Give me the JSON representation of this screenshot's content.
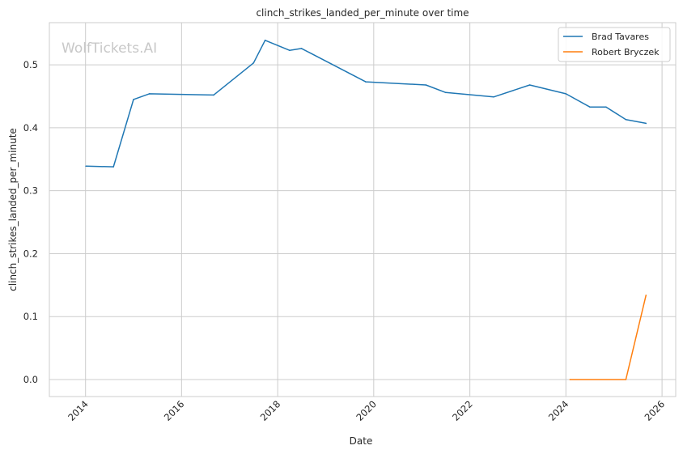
{
  "chart_data": {
    "type": "line",
    "title": "clinch_strikes_landed_per_minute over time",
    "xlabel": "Date",
    "ylabel": "clinch_strikes_landed_per_minute",
    "watermark": "WolfTickets.AI",
    "grid": true,
    "legend_position": "top-right",
    "xlim": [
      "2013-04-01",
      "2026-04-15"
    ],
    "ylim": [
      -0.027,
      0.567
    ],
    "x_ticks": [
      "2014",
      "2016",
      "2018",
      "2020",
      "2022",
      "2024",
      "2026"
    ],
    "y_ticks": [
      "0.0",
      "0.1",
      "0.2",
      "0.3",
      "0.4",
      "0.5"
    ],
    "series": [
      {
        "name": "Brad Tavares",
        "color": "#1f77b4",
        "points": [
          {
            "x": "2014-01-04",
            "y": 0.339
          },
          {
            "x": "2014-08-01",
            "y": 0.338
          },
          {
            "x": "2015-01-01",
            "y": 0.445
          },
          {
            "x": "2015-05-01",
            "y": 0.454
          },
          {
            "x": "2016-09-01",
            "y": 0.452
          },
          {
            "x": "2017-07-01",
            "y": 0.503
          },
          {
            "x": "2017-09-27",
            "y": 0.539
          },
          {
            "x": "2018-04-01",
            "y": 0.523
          },
          {
            "x": "2018-07-01",
            "y": 0.526
          },
          {
            "x": "2019-11-01",
            "y": 0.473
          },
          {
            "x": "2021-02-01",
            "y": 0.468
          },
          {
            "x": "2021-07-01",
            "y": 0.456
          },
          {
            "x": "2022-07-01",
            "y": 0.449
          },
          {
            "x": "2023-04-01",
            "y": 0.468
          },
          {
            "x": "2024-01-01",
            "y": 0.454
          },
          {
            "x": "2024-07-01",
            "y": 0.433
          },
          {
            "x": "2024-11-01",
            "y": 0.433
          },
          {
            "x": "2025-04-01",
            "y": 0.413
          },
          {
            "x": "2025-09-01",
            "y": 0.407
          }
        ]
      },
      {
        "name": "Robert Bryczek",
        "color": "#ff7f0e",
        "points": [
          {
            "x": "2024-02-01",
            "y": 0.0
          },
          {
            "x": "2025-04-01",
            "y": 0.0
          },
          {
            "x": "2025-09-01",
            "y": 0.134
          }
        ]
      }
    ]
  }
}
